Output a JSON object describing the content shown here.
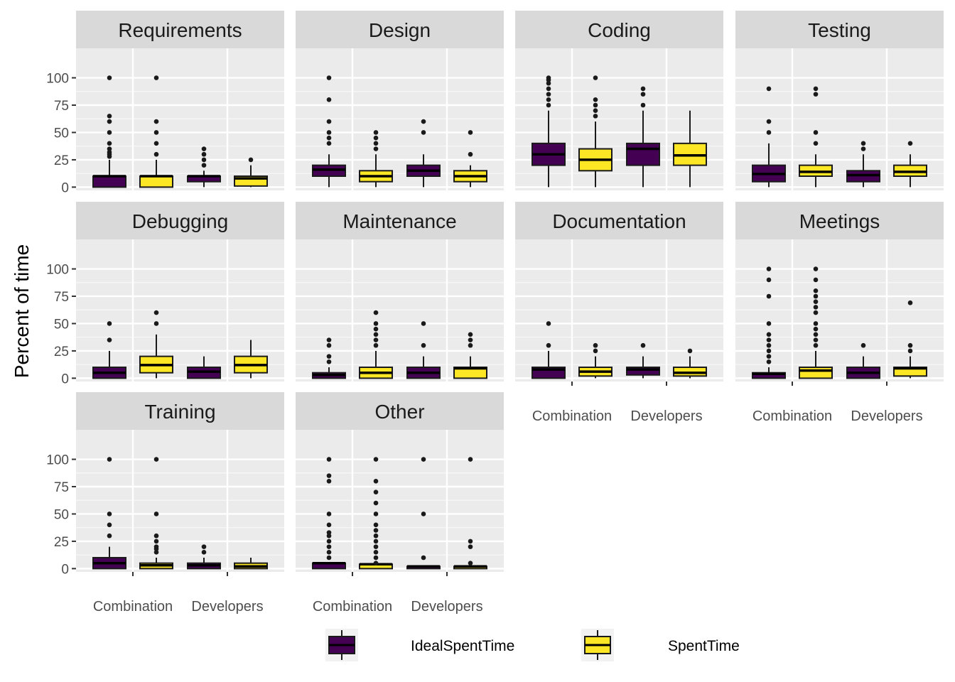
{
  "chart_data": {
    "type": "box",
    "ylabel": "Percent of time",
    "xlabel": "",
    "ylim": [
      -3,
      127
    ],
    "yticks": [
      0,
      25,
      50,
      75,
      100
    ],
    "categories": [
      "Combination",
      "Developers"
    ],
    "legend": {
      "placement": "bottom",
      "entries": [
        {
          "name": "IdealSpentTime",
          "color": "#440154"
        },
        {
          "name": "SpentTime",
          "color": "#FDE725"
        }
      ]
    },
    "panels": [
      {
        "title": "Requirements",
        "boxes": [
          {
            "category": "Combination",
            "series": "IdealSpentTime",
            "whisker_low": 0,
            "q1": 0,
            "median": 10,
            "q3": 10,
            "whisker_high": 25,
            "outliers": [
              28,
              30,
              32,
              35,
              40,
              50,
              60,
              65,
              100
            ]
          },
          {
            "category": "Combination",
            "series": "SpentTime",
            "whisker_low": 0,
            "q1": 0,
            "median": 10,
            "q3": 10,
            "whisker_high": 25,
            "outliers": [
              30,
              40,
              50,
              60,
              100
            ]
          },
          {
            "category": "Developers",
            "series": "IdealSpentTime",
            "whisker_low": 0,
            "q1": 5,
            "median": 10,
            "q3": 10,
            "whisker_high": 15,
            "outliers": [
              20,
              25,
              30,
              35
            ]
          },
          {
            "category": "Developers",
            "series": "SpentTime",
            "whisker_low": 0,
            "q1": 1,
            "median": 8,
            "q3": 10,
            "whisker_high": 20,
            "outliers": [
              25
            ]
          }
        ]
      },
      {
        "title": "Design",
        "boxes": [
          {
            "category": "Combination",
            "series": "IdealSpentTime",
            "whisker_low": 0,
            "q1": 10,
            "median": 16,
            "q3": 20,
            "whisker_high": 30,
            "outliers": [
              40,
              45,
              50,
              60,
              80,
              100
            ]
          },
          {
            "category": "Combination",
            "series": "SpentTime",
            "whisker_low": 0,
            "q1": 5,
            "median": 10,
            "q3": 15,
            "whisker_high": 30,
            "outliers": [
              35,
              40,
              45,
              50
            ]
          },
          {
            "category": "Developers",
            "series": "IdealSpentTime",
            "whisker_low": 0,
            "q1": 10,
            "median": 15,
            "q3": 20,
            "whisker_high": 30,
            "outliers": [
              50,
              60
            ]
          },
          {
            "category": "Developers",
            "series": "SpentTime",
            "whisker_low": 0,
            "q1": 5,
            "median": 10,
            "q3": 15,
            "whisker_high": 20,
            "outliers": [
              30,
              50
            ]
          }
        ]
      },
      {
        "title": "Coding",
        "boxes": [
          {
            "category": "Combination",
            "series": "IdealSpentTime",
            "whisker_low": 0,
            "q1": 20,
            "median": 30,
            "q3": 40,
            "whisker_high": 70,
            "outliers": [
              75,
              80,
              85,
              90,
              95,
              98,
              100
            ]
          },
          {
            "category": "Combination",
            "series": "SpentTime",
            "whisker_low": 0,
            "q1": 15,
            "median": 25,
            "q3": 35,
            "whisker_high": 60,
            "outliers": [
              65,
              70,
              75,
              80,
              100
            ]
          },
          {
            "category": "Developers",
            "series": "IdealSpentTime",
            "whisker_low": 0,
            "q1": 20,
            "median": 35,
            "q3": 40,
            "whisker_high": 70,
            "outliers": [
              75,
              85,
              90
            ]
          },
          {
            "category": "Developers",
            "series": "SpentTime",
            "whisker_low": 0,
            "q1": 20,
            "median": 29,
            "q3": 40,
            "whisker_high": 70,
            "outliers": []
          }
        ]
      },
      {
        "title": "Testing",
        "boxes": [
          {
            "category": "Combination",
            "series": "IdealSpentTime",
            "whisker_low": 0,
            "q1": 5,
            "median": 12,
            "q3": 20,
            "whisker_high": 40,
            "outliers": [
              50,
              60,
              90
            ]
          },
          {
            "category": "Combination",
            "series": "SpentTime",
            "whisker_low": 0,
            "q1": 10,
            "median": 14,
            "q3": 20,
            "whisker_high": 30,
            "outliers": [
              40,
              50,
              85,
              90
            ]
          },
          {
            "category": "Developers",
            "series": "IdealSpentTime",
            "whisker_low": 0,
            "q1": 5,
            "median": 11,
            "q3": 15,
            "whisker_high": 30,
            "outliers": [
              35,
              40
            ]
          },
          {
            "category": "Developers",
            "series": "SpentTime",
            "whisker_low": 0,
            "q1": 10,
            "median": 14,
            "q3": 20,
            "whisker_high": 30,
            "outliers": [
              40
            ]
          }
        ]
      },
      {
        "title": "Debugging",
        "boxes": [
          {
            "category": "Combination",
            "series": "IdealSpentTime",
            "whisker_low": 0,
            "q1": 0,
            "median": 5,
            "q3": 10,
            "whisker_high": 25,
            "outliers": [
              35,
              50
            ]
          },
          {
            "category": "Combination",
            "series": "SpentTime",
            "whisker_low": 0,
            "q1": 5,
            "median": 12,
            "q3": 20,
            "whisker_high": 40,
            "outliers": [
              50,
              60
            ]
          },
          {
            "category": "Developers",
            "series": "IdealSpentTime",
            "whisker_low": 0,
            "q1": 0,
            "median": 6,
            "q3": 10,
            "whisker_high": 20,
            "outliers": []
          },
          {
            "category": "Developers",
            "series": "SpentTime",
            "whisker_low": 0,
            "q1": 5,
            "median": 12,
            "q3": 20,
            "whisker_high": 35,
            "outliers": []
          }
        ]
      },
      {
        "title": "Maintenance",
        "boxes": [
          {
            "category": "Combination",
            "series": "IdealSpentTime",
            "whisker_low": 0,
            "q1": 0,
            "median": 3,
            "q3": 5,
            "whisker_high": 10,
            "outliers": [
              15,
              20,
              30,
              35
            ]
          },
          {
            "category": "Combination",
            "series": "SpentTime",
            "whisker_low": 0,
            "q1": 0,
            "median": 5,
            "q3": 10,
            "whisker_high": 25,
            "outliers": [
              30,
              35,
              40,
              45,
              50,
              60
            ]
          },
          {
            "category": "Developers",
            "series": "IdealSpentTime",
            "whisker_low": 0,
            "q1": 0,
            "median": 5,
            "q3": 10,
            "whisker_high": 20,
            "outliers": [
              30,
              50
            ]
          },
          {
            "category": "Developers",
            "series": "SpentTime",
            "whisker_low": 0,
            "q1": 0,
            "median": 9,
            "q3": 10,
            "whisker_high": 20,
            "outliers": [
              30,
              35,
              40
            ]
          }
        ]
      },
      {
        "title": "Documentation",
        "boxes": [
          {
            "category": "Combination",
            "series": "IdealSpentTime",
            "whisker_low": 0,
            "q1": 0,
            "median": 8,
            "q3": 10,
            "whisker_high": 25,
            "outliers": [
              30,
              50
            ]
          },
          {
            "category": "Combination",
            "series": "SpentTime",
            "whisker_low": 0,
            "q1": 2,
            "median": 6,
            "q3": 10,
            "whisker_high": 20,
            "outliers": [
              25,
              30
            ]
          },
          {
            "category": "Developers",
            "series": "IdealSpentTime",
            "whisker_low": 0,
            "q1": 3,
            "median": 8,
            "q3": 10,
            "whisker_high": 20,
            "outliers": [
              30
            ]
          },
          {
            "category": "Developers",
            "series": "SpentTime",
            "whisker_low": 0,
            "q1": 2,
            "median": 5,
            "q3": 10,
            "whisker_high": 20,
            "outliers": [
              25
            ]
          }
        ]
      },
      {
        "title": "Meetings",
        "boxes": [
          {
            "category": "Combination",
            "series": "IdealSpentTime",
            "whisker_low": 0,
            "q1": 0,
            "median": 4,
            "q3": 5,
            "whisker_high": 10,
            "outliers": [
              15,
              20,
              25,
              30,
              35,
              40,
              50,
              75,
              90,
              100
            ]
          },
          {
            "category": "Combination",
            "series": "SpentTime",
            "whisker_low": 0,
            "q1": 0,
            "median": 7,
            "q3": 10,
            "whisker_high": 25,
            "outliers": [
              30,
              35,
              40,
              45,
              50,
              60,
              65,
              70,
              75,
              80,
              90,
              100
            ]
          },
          {
            "category": "Developers",
            "series": "IdealSpentTime",
            "whisker_low": 0,
            "q1": 0,
            "median": 5,
            "q3": 10,
            "whisker_high": 20,
            "outliers": [
              30
            ]
          },
          {
            "category": "Developers",
            "series": "SpentTime",
            "whisker_low": 0,
            "q1": 2,
            "median": 9,
            "q3": 10,
            "whisker_high": 20,
            "outliers": [
              25,
              30,
              69
            ]
          }
        ]
      },
      {
        "title": "Training",
        "boxes": [
          {
            "category": "Combination",
            "series": "IdealSpentTime",
            "whisker_low": 0,
            "q1": 0,
            "median": 5,
            "q3": 10,
            "whisker_high": 20,
            "outliers": [
              30,
              40,
              50,
              100
            ]
          },
          {
            "category": "Combination",
            "series": "SpentTime",
            "whisker_low": 0,
            "q1": 0,
            "median": 3,
            "q3": 5,
            "whisker_high": 10,
            "outliers": [
              15,
              18,
              20,
              25,
              30,
              50,
              100
            ]
          },
          {
            "category": "Developers",
            "series": "IdealSpentTime",
            "whisker_low": 0,
            "q1": 0,
            "median": 3,
            "q3": 5,
            "whisker_high": 10,
            "outliers": [
              15,
              20
            ]
          },
          {
            "category": "Developers",
            "series": "SpentTime",
            "whisker_low": 0,
            "q1": 0,
            "median": 2,
            "q3": 5,
            "whisker_high": 10,
            "outliers": []
          }
        ]
      },
      {
        "title": "Other",
        "boxes": [
          {
            "category": "Combination",
            "series": "IdealSpentTime",
            "whisker_low": 0,
            "q1": 0,
            "median": 5,
            "q3": 5,
            "whisker_high": 5,
            "outliers": [
              10,
              15,
              20,
              25,
              30,
              33,
              40,
              50,
              80,
              85,
              100
            ]
          },
          {
            "category": "Combination",
            "series": "SpentTime",
            "whisker_low": 0,
            "q1": 0,
            "median": 4,
            "q3": 4,
            "whisker_high": 4,
            "outliers": [
              5,
              10,
              15,
              20,
              25,
              30,
              35,
              40,
              50,
              60,
              70,
              80,
              100
            ]
          },
          {
            "category": "Developers",
            "series": "IdealSpentTime",
            "whisker_low": 0,
            "q1": 0,
            "median": 2,
            "q3": 2,
            "whisker_high": 2,
            "outliers": [
              10,
              50,
              100
            ]
          },
          {
            "category": "Developers",
            "series": "SpentTime",
            "whisker_low": 0,
            "q1": 0,
            "median": 2,
            "q3": 2,
            "whisker_high": 2,
            "outliers": [
              5,
              20,
              25,
              100
            ]
          }
        ]
      }
    ]
  }
}
